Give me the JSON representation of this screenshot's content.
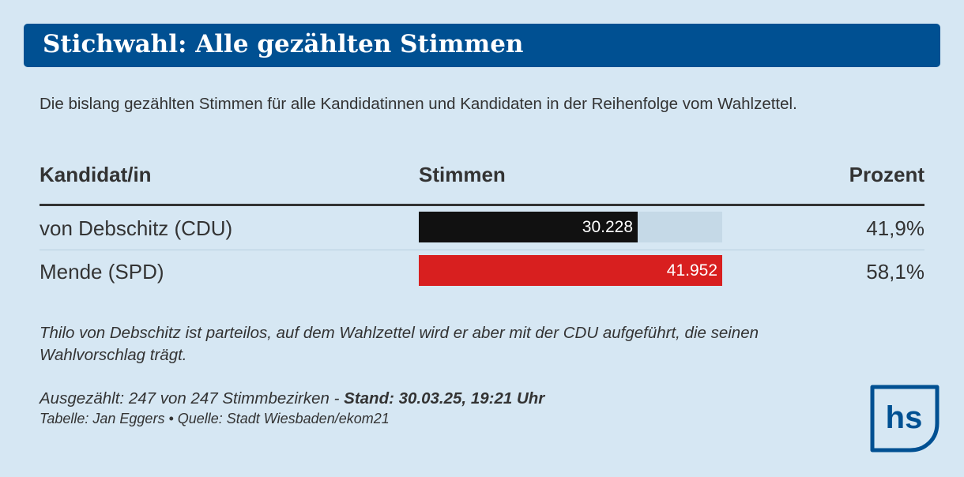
{
  "title": "Stichwahl: Alle gezählten Stimmen",
  "subtitle": "Die bislang gezählten Stimmen für alle Kandidatinnen und Kandidaten in der Reihenfolge vom Wahlzettel.",
  "table": {
    "headers": {
      "candidate": "Kandidat/in",
      "votes": "Stimmen",
      "percent": "Prozent"
    }
  },
  "chart_data": {
    "type": "bar",
    "orientation": "horizontal",
    "categories": [
      "von Debschitz (CDU)",
      "Mende (SPD)"
    ],
    "values": [
      30228,
      41952
    ],
    "value_labels": [
      "30.228",
      "41.952"
    ],
    "percent_labels": [
      "41,9%",
      "58,1%"
    ],
    "xlim": [
      0,
      41952
    ],
    "colors": [
      "#111111",
      "#d81f1f"
    ],
    "track_color": "#c5d9e7",
    "title": "Stichwahl: Alle gezählten Stimmen",
    "xlabel": "",
    "ylabel": "",
    "grid": false
  },
  "note": "Thilo von Debschitz ist parteilos, auf dem Wahlzettel wird er aber mit der CDU aufgeführt, die seinen Wahlvorschlag trägt.",
  "footer": {
    "counted": "Ausgezählt: 247 von 247 Stimmbezirken - ",
    "stand": "Stand: 30.03.25, 19:21 Uhr",
    "credit": "Tabelle: Jan Eggers • Quelle: Stadt Wiesbaden/ekom21"
  },
  "logo": {
    "text": "hs",
    "color": "#005092"
  },
  "colors": {
    "background": "#d6e7f3",
    "title_bar": "#005092",
    "text": "#333333"
  }
}
